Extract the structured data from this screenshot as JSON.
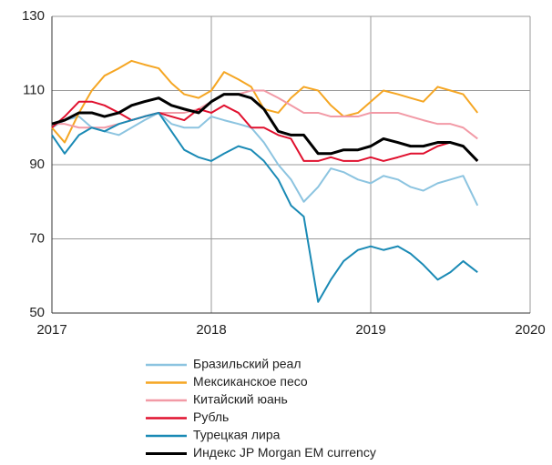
{
  "chart_data": {
    "type": "line",
    "x": [
      2017,
      2017.08,
      2017.17,
      2017.25,
      2017.33,
      2017.42,
      2017.5,
      2017.58,
      2017.67,
      2017.75,
      2017.83,
      2017.92,
      2018,
      2018.08,
      2018.17,
      2018.25,
      2018.33,
      2018.42,
      2018.5,
      2018.58,
      2018.67,
      2018.75,
      2018.83,
      2018.92,
      2019,
      2019.08,
      2019.17,
      2019.25,
      2019.33,
      2019.42,
      2019.5,
      2019.58,
      2019.67
    ],
    "series": [
      {
        "name": "Бразильский реал",
        "color": "#8cc4e0",
        "values": [
          100,
          102,
          103,
          100,
          99,
          98,
          100,
          102,
          104,
          101,
          100,
          100,
          103,
          102,
          101,
          100,
          96,
          90,
          86,
          80,
          84,
          89,
          88,
          86,
          85,
          87,
          86,
          84,
          83,
          85,
          86,
          87,
          79
        ]
      },
      {
        "name": "Мексиканское песо",
        "color": "#f5a623",
        "values": [
          100,
          96,
          104,
          110,
          114,
          116,
          118,
          117,
          116,
          112,
          109,
          108,
          110,
          115,
          113,
          111,
          105,
          104,
          108,
          111,
          110,
          106,
          103,
          104,
          107,
          110,
          109,
          108,
          107,
          111,
          110,
          109,
          104
        ]
      },
      {
        "name": "Китайский юань",
        "color": "#f29aa6",
        "values": [
          101,
          101,
          100,
          100,
          100,
          101,
          102,
          103,
          104,
          104,
          104,
          105,
          107,
          109,
          109,
          110,
          110,
          108,
          106,
          104,
          104,
          103,
          103,
          103,
          104,
          104,
          104,
          103,
          102,
          101,
          101,
          100,
          97
        ]
      },
      {
        "name": "Рубль",
        "color": "#e0102e",
        "values": [
          100,
          103,
          107,
          107,
          106,
          104,
          102,
          103,
          104,
          103,
          102,
          105,
          104,
          106,
          104,
          100,
          100,
          98,
          97,
          91,
          91,
          92,
          91,
          91,
          92,
          91,
          92,
          93,
          93,
          95,
          96,
          95,
          91
        ]
      },
      {
        "name": "Турецкая лира",
        "color": "#1a8ab5",
        "values": [
          98,
          93,
          98,
          100,
          99,
          101,
          102,
          103,
          104,
          99,
          94,
          92,
          91,
          93,
          95,
          94,
          91,
          86,
          79,
          76,
          53,
          59,
          64,
          67,
          68,
          67,
          68,
          66,
          63,
          59,
          61,
          64,
          61
        ]
      },
      {
        "name": "Индекс JP Morgan EM currency",
        "color": "#000000",
        "values": [
          101,
          102,
          104,
          104,
          103,
          104,
          106,
          107,
          108,
          106,
          105,
          104,
          107,
          109,
          109,
          108,
          105,
          99,
          98,
          98,
          93,
          93,
          94,
          94,
          95,
          97,
          96,
          95,
          95,
          96,
          96,
          95,
          91
        ]
      }
    ],
    "xlim": [
      2017,
      2020
    ],
    "xticks": [
      2017,
      2018,
      2019,
      2020
    ],
    "ylim": [
      50,
      130
    ],
    "yticks": [
      50,
      70,
      90,
      110,
      130
    ],
    "grid": true,
    "legend": "bottom"
  }
}
